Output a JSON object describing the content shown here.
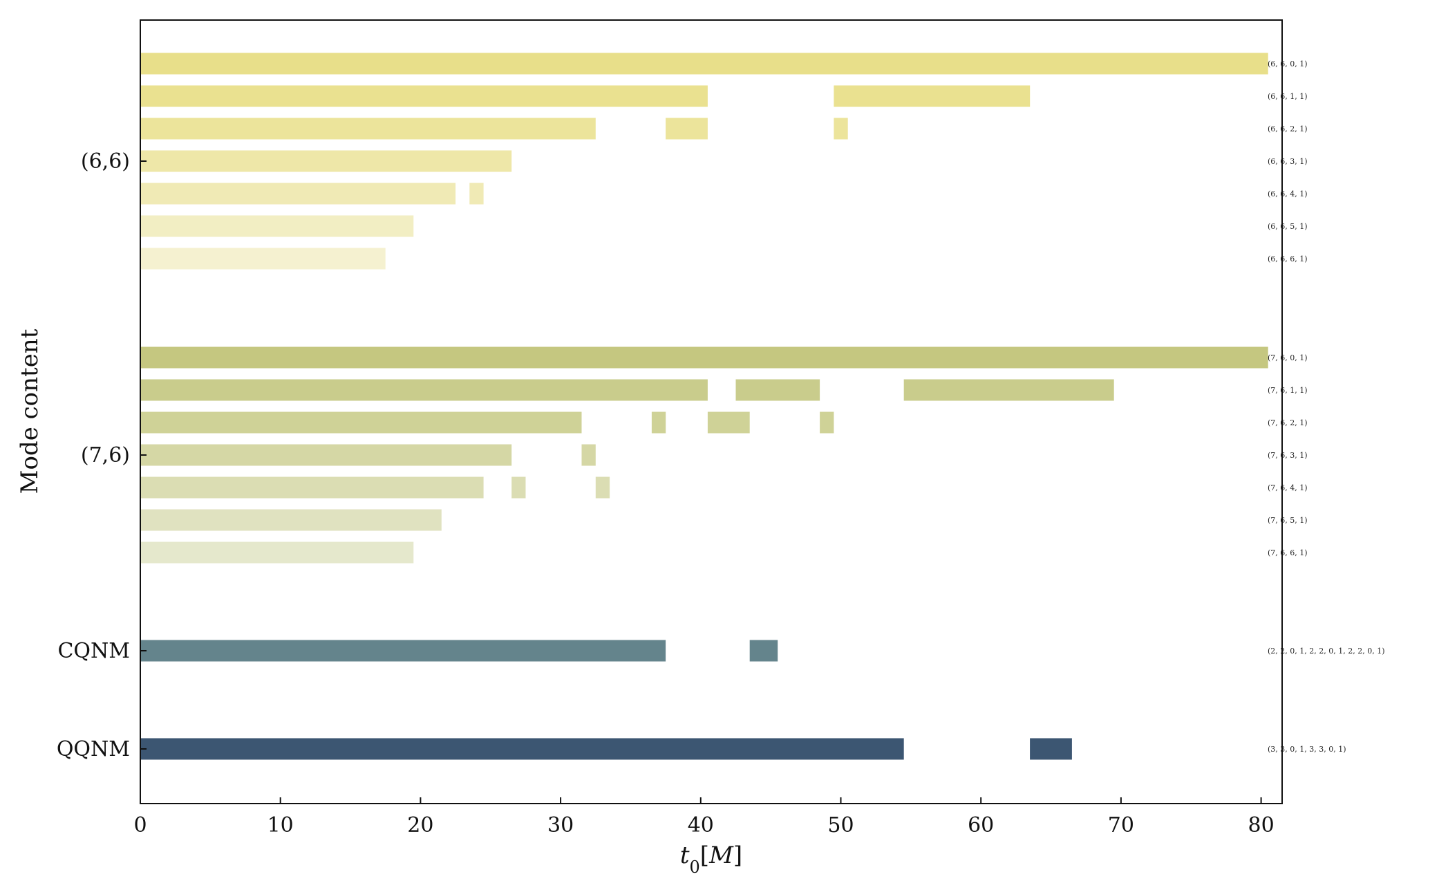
{
  "chart_data": {
    "type": "bar",
    "xlabel": "t_0[M]",
    "ylabel": "Mode content",
    "xlim": [
      0,
      81.5
    ],
    "xticks": [
      "0",
      "10",
      "20",
      "30",
      "40",
      "50",
      "60",
      "70",
      "80"
    ],
    "group_labels": [
      "(6,6)",
      "(7,6)",
      "CQNM",
      "QQNM"
    ],
    "rows": [
      {
        "label": "(6, 6, 0, 1)",
        "group": "(6,6)",
        "color": "#e8df8a",
        "intervals": [
          [
            0,
            80.5
          ]
        ]
      },
      {
        "label": "(6, 6, 1, 1)",
        "group": "(6,6)",
        "color": "#eae190",
        "intervals": [
          [
            0,
            40.5
          ],
          [
            49.5,
            63.5
          ]
        ]
      },
      {
        "label": "(6, 6, 2, 1)",
        "group": "(6,6)",
        "color": "#ece49b",
        "intervals": [
          [
            0,
            32.5
          ],
          [
            37.5,
            40.5
          ],
          [
            49.5,
            50.5
          ]
        ]
      },
      {
        "label": "(6, 6, 3, 1)",
        "group": "(6,6)",
        "color": "#eee7a8",
        "intervals": [
          [
            0,
            26.5
          ]
        ]
      },
      {
        "label": "(6, 6, 4, 1)",
        "group": "(6,6)",
        "color": "#f0eab5",
        "intervals": [
          [
            0,
            22.5
          ],
          [
            23.5,
            24.5
          ]
        ]
      },
      {
        "label": "(6, 6, 5, 1)",
        "group": "(6,6)",
        "color": "#f2eec3",
        "intervals": [
          [
            0,
            19.5
          ]
        ]
      },
      {
        "label": "(6, 6, 6, 1)",
        "group": "(6,6)",
        "color": "#f5f1d0",
        "intervals": [
          [
            0,
            17.5
          ]
        ]
      },
      {
        "label": "(7, 6, 0, 1)",
        "group": "(7,6)",
        "color": "#c5c780",
        "intervals": [
          [
            0,
            80.5
          ]
        ]
      },
      {
        "label": "(7, 6, 1, 1)",
        "group": "(7,6)",
        "color": "#c9cc8c",
        "intervals": [
          [
            0,
            40.5
          ],
          [
            42.5,
            48.5
          ],
          [
            54.5,
            69.5
          ]
        ]
      },
      {
        "label": "(7, 6, 2, 1)",
        "group": "(7,6)",
        "color": "#cfd297",
        "intervals": [
          [
            0,
            31.5
          ],
          [
            36.5,
            37.5
          ],
          [
            40.5,
            43.5
          ],
          [
            48.5,
            49.5
          ]
        ]
      },
      {
        "label": "(7, 6, 3, 1)",
        "group": "(7,6)",
        "color": "#d5d7a5",
        "intervals": [
          [
            0,
            26.5
          ],
          [
            31.5,
            32.5
          ]
        ]
      },
      {
        "label": "(7, 6, 4, 1)",
        "group": "(7,6)",
        "color": "#dbddb3",
        "intervals": [
          [
            0,
            24.5
          ],
          [
            26.5,
            27.5
          ],
          [
            32.5,
            33.5
          ]
        ]
      },
      {
        "label": "(7, 6, 5, 1)",
        "group": "(7,6)",
        "color": "#e0e2c0",
        "intervals": [
          [
            0,
            21.5
          ]
        ]
      },
      {
        "label": "(7, 6, 6, 1)",
        "group": "(7,6)",
        "color": "#e5e8cc",
        "intervals": [
          [
            0,
            19.5
          ]
        ]
      },
      {
        "label": "(2, 2, 0, 1, 2, 2, 0, 1, 2, 2, 0, 1)",
        "group": "CQNM",
        "color": "#64848c",
        "intervals": [
          [
            0,
            37.5
          ],
          [
            43.5,
            45.5
          ]
        ]
      },
      {
        "label": "(3, 3, 0, 1, 3, 3, 0, 1)",
        "group": "QQNM",
        "color": "#3c5672",
        "intervals": [
          [
            0,
            54.5
          ],
          [
            63.5,
            66.5
          ]
        ]
      }
    ]
  }
}
